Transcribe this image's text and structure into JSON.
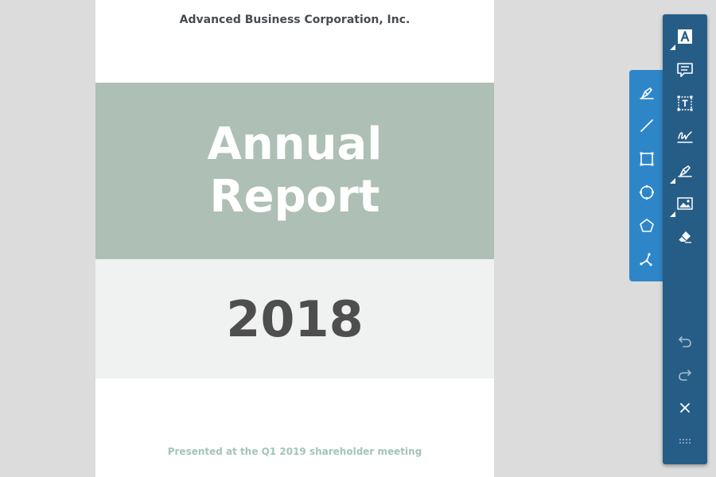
{
  "document": {
    "company": "Advanced Business Corporation, Inc.",
    "title_line1": "Annual",
    "title_line2": "Report",
    "year": "2018",
    "presented": "Presented at the Q1 2019 shareholder meeting"
  },
  "colors": {
    "title_band": "#aebfb5",
    "year_band": "#f0f2f1",
    "toolbar": "#265d87",
    "subtoolbar": "#2e86c9"
  },
  "subtoolbar": {
    "tools": [
      "pen-icon",
      "line-icon",
      "rectangle-icon",
      "ellipse-icon",
      "polygon-icon",
      "polyline-icon"
    ]
  },
  "toolbar": {
    "tools": [
      "text-icon",
      "comment-icon",
      "textbox-icon",
      "signature-icon",
      "pen-icon",
      "image-icon",
      "eraser-icon",
      "undo-icon",
      "redo-icon",
      "close-icon",
      "drag-handle-icon"
    ]
  }
}
